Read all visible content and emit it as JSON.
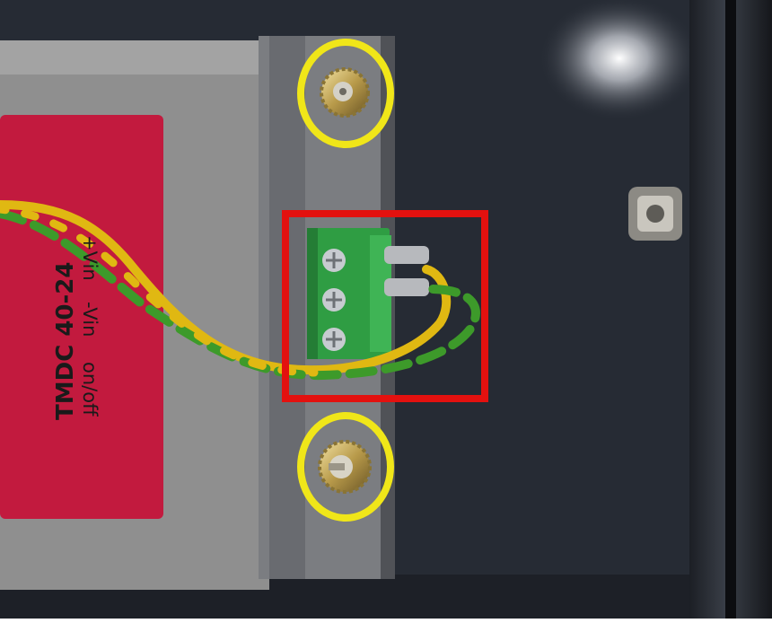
{
  "label": {
    "model": "TMDC 40-24",
    "pin_plus": "+Vin",
    "pin_minus": "-Vin",
    "pin_onoff": "on/off"
  },
  "annotations": {
    "screw_circle_color": "#f0e619",
    "terminal_box_color": "#e3110f"
  },
  "colors": {
    "enclosure": "#262b34",
    "module_housing": "#8f8f8f",
    "label_red": "#c21a3e",
    "terminal_block": "#2f9d43",
    "wire_yellow": "#e0b812",
    "wire_green": "#3d9a2a"
  }
}
